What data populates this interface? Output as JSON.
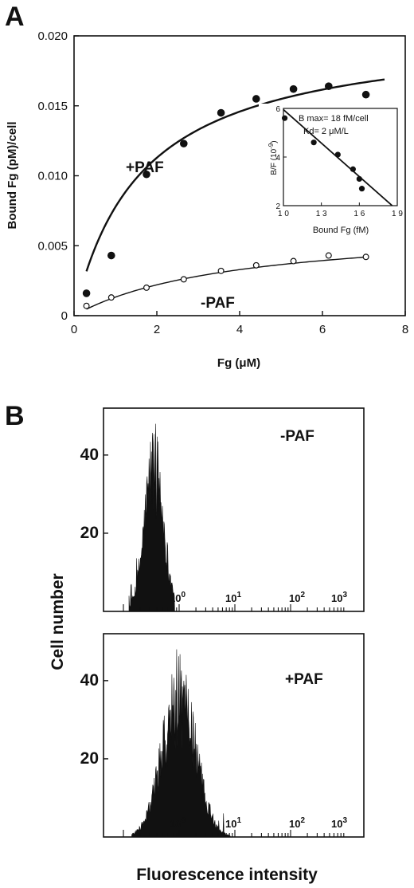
{
  "panels": {
    "a_letter": "A",
    "b_letter": "B"
  },
  "chart_data": [
    {
      "type": "scatter",
      "panel": "A",
      "xlabel": "Fg  (μM)",
      "ylabel": "Bound  Fg  (pM)/cell",
      "xlim": [
        0,
        8
      ],
      "ylim": [
        0,
        0.02
      ],
      "xticks": [
        "0",
        "2",
        "4",
        "6",
        "8"
      ],
      "yticks": [
        "0",
        "0.005",
        "0.010",
        "0.015",
        "0.020"
      ],
      "series": [
        {
          "name": "+PAF",
          "marker": "filled-circle",
          "x": [
            0.3,
            0.9,
            1.75,
            2.65,
            3.55,
            4.4,
            5.3,
            6.15,
            7.05
          ],
          "y": [
            0.0016,
            0.0043,
            0.0101,
            0.0123,
            0.0145,
            0.0155,
            0.0162,
            0.0164,
            0.0158
          ],
          "fit": {
            "bmax": 0.0206,
            "kd": 1.65,
            "x_start": 0.3,
            "x_end": 7.5
          }
        },
        {
          "name": "-PAF",
          "marker": "open-circle",
          "x": [
            0.3,
            0.9,
            1.75,
            2.65,
            3.55,
            4.4,
            5.3,
            6.15,
            7.05
          ],
          "y": [
            0.0007,
            0.0013,
            0.002,
            0.0026,
            0.0032,
            0.0036,
            0.0039,
            0.0043,
            0.0042
          ],
          "fit": {
            "bmax": 0.0065,
            "kd": 3.9,
            "x_start": 0.3,
            "x_end": 7.1
          }
        }
      ],
      "inset": {
        "type": "scatter",
        "xlabel": "Bound Fg (fM)",
        "ylabel": "B/F  (10",
        "ylabel_exp": "-9",
        "ylabel_close": ")",
        "xticks": [
          "1 0",
          "1 3",
          "1 6",
          "1 9"
        ],
        "yticks": [
          "2",
          "4",
          "6"
        ],
        "xlim": [
          10,
          19
        ],
        "ylim": [
          2,
          6
        ],
        "annotation_1": "B  max= 18  fM/cell",
        "annotation_2": "Kd=  2  μM/L",
        "x": [
          10.1,
          12.4,
          14.3,
          15.5,
          16.0,
          16.2
        ],
        "y": [
          5.6,
          4.6,
          4.1,
          3.5,
          3.1,
          2.7
        ],
        "fit_line": {
          "x": [
            10.0,
            18.6
          ],
          "y": [
            5.95,
            2.0
          ]
        }
      }
    },
    {
      "type": "histogram",
      "panel": "B",
      "ylabel": "Cell number",
      "xlabel": "Fluorescence  intensity",
      "x_scale": "log",
      "x_decade_labels": [
        {
          "base": "10",
          "exp": "0"
        },
        {
          "base": "10",
          "exp": "1"
        },
        {
          "base": "10",
          "exp": "2"
        },
        {
          "base": "10",
          "exp": "3"
        }
      ],
      "yticks": [
        "20",
        "40"
      ],
      "ylim": [
        0,
        52
      ],
      "series": [
        {
          "name": "-PAF",
          "log_center": -0.45,
          "log_sd": 0.17,
          "peak": 43,
          "log_min": -0.9,
          "log_max": -0.08
        },
        {
          "name": "+PAF",
          "log_center": 0.0,
          "log_sd": 0.3,
          "peak": 41,
          "log_min": -0.85,
          "log_max": 0.92
        }
      ]
    }
  ]
}
